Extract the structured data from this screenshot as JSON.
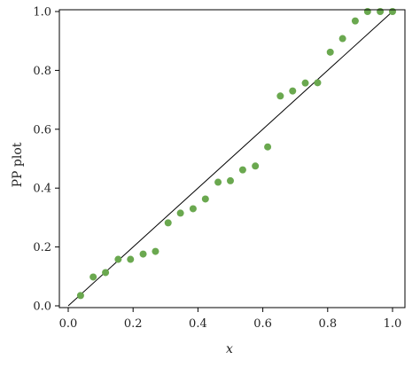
{
  "chart_data": {
    "type": "scatter",
    "title": "",
    "xlabel": "x",
    "ylabel": "PP plot",
    "xlim": [
      0.0,
      1.0
    ],
    "ylim": [
      0.0,
      1.0
    ],
    "grid": false,
    "legend": "none",
    "xticks": [
      "0.0",
      "0.2",
      "0.4",
      "0.6",
      "0.8",
      "1.0"
    ],
    "yticks": [
      "0.0",
      "0.2",
      "0.4",
      "0.6",
      "0.8",
      "1.0"
    ],
    "reference_line": {
      "from": [
        0,
        0
      ],
      "to": [
        1,
        1
      ],
      "color": "#000000"
    },
    "point_color": "#6aa84f",
    "series": [
      {
        "points": [
          [
            0.038,
            0.035
          ],
          [
            0.077,
            0.098
          ],
          [
            0.115,
            0.113
          ],
          [
            0.154,
            0.158
          ],
          [
            0.192,
            0.158
          ],
          [
            0.231,
            0.176
          ],
          [
            0.269,
            0.185
          ],
          [
            0.308,
            0.282
          ],
          [
            0.346,
            0.315
          ],
          [
            0.385,
            0.33
          ],
          [
            0.423,
            0.363
          ],
          [
            0.462,
            0.42
          ],
          [
            0.5,
            0.425
          ],
          [
            0.538,
            0.462
          ],
          [
            0.577,
            0.475
          ],
          [
            0.615,
            0.54
          ],
          [
            0.654,
            0.713
          ],
          [
            0.692,
            0.73
          ],
          [
            0.731,
            0.757
          ],
          [
            0.769,
            0.758
          ],
          [
            0.808,
            0.862
          ],
          [
            0.846,
            0.908
          ],
          [
            0.885,
            0.968
          ],
          [
            0.923,
            1.0
          ],
          [
            0.962,
            1.0
          ],
          [
            1.0,
            1.0
          ]
        ]
      }
    ]
  }
}
